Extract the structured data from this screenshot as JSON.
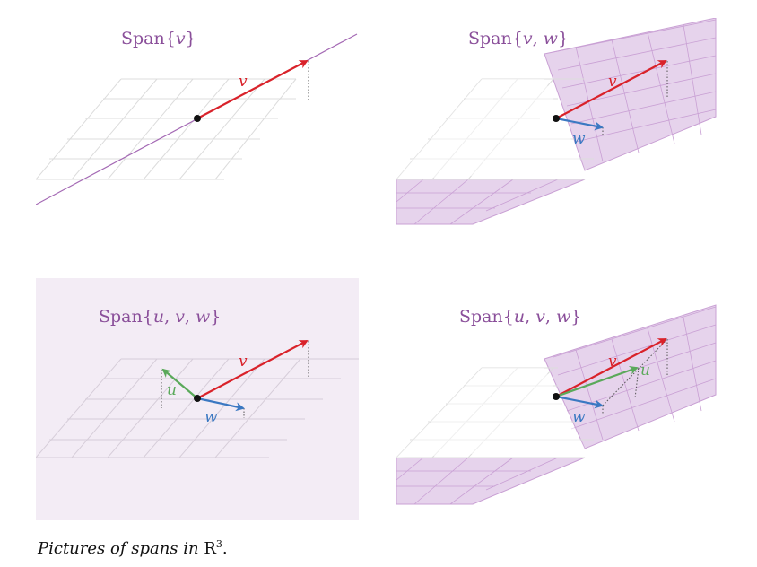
{
  "panels": [
    {
      "title_text": "Span",
      "title_lbrace": "{",
      "title_vars": [
        "v"
      ],
      "title_rbrace": "}",
      "labels": {
        "v": "v"
      },
      "colors": {
        "v": "#d9222a"
      },
      "span_color": "#a469b4"
    },
    {
      "title_text": "Span",
      "title_lbrace": "{",
      "title_vars": [
        "v",
        "w"
      ],
      "title_rbrace": "}",
      "labels": {
        "v": "v",
        "w": "w"
      },
      "colors": {
        "v": "#d9222a",
        "w": "#3a78c2"
      },
      "span_color": "#c9a0d4"
    },
    {
      "title_text": "Span",
      "title_lbrace": "{",
      "title_vars": [
        "u",
        "v",
        "w"
      ],
      "title_rbrace": "}",
      "labels": {
        "u": "u",
        "v": "v",
        "w": "w"
      },
      "colors": {
        "u": "#5aa95a",
        "v": "#d9222a",
        "w": "#3a78c2"
      },
      "span_color": "#f3ecf5"
    },
    {
      "title_text": "Span",
      "title_lbrace": "{",
      "title_vars": [
        "u",
        "v",
        "w"
      ],
      "title_rbrace": "}",
      "labels": {
        "u": "u",
        "v": "v",
        "w": "w"
      },
      "colors": {
        "u": "#5aa95a",
        "v": "#d9222a",
        "w": "#3a78c2"
      },
      "span_color": "#c9a0d4"
    }
  ],
  "caption": {
    "text": "Pictures of spans in",
    "space": "R",
    "exponent": "3",
    "period": "."
  }
}
